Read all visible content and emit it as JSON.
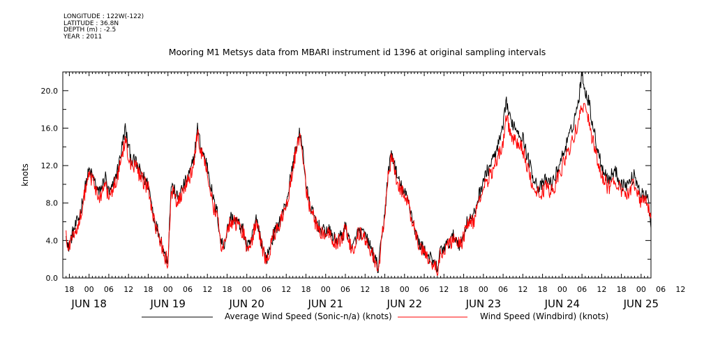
{
  "metadata": {
    "longitude": "LONGITUDE : 122W(-122)",
    "latitude": "LATITUDE : 36.8N",
    "depth": "DEPTH (m) : -2.5",
    "year": "YEAR : 2011"
  },
  "chart_data": {
    "type": "line",
    "title": "Mooring M1 Metsys data from MBARI instrument id 1396 at original sampling intervals",
    "ylabel": "knots",
    "ylim": [
      0,
      22
    ],
    "yticks": [
      0,
      4,
      8,
      12,
      16,
      20
    ],
    "ytick_labels": [
      "0.0",
      "4.0",
      "8.0",
      "12.0",
      "16.0",
      "20.0"
    ],
    "xlim_hours": [
      -8,
      171
    ],
    "hour_tick_labels": [
      "18",
      "00",
      "06",
      "12",
      "18",
      "00",
      "06",
      "12",
      "18",
      "00",
      "06",
      "12",
      "18",
      "00",
      "06",
      "12",
      "18",
      "00",
      "06",
      "12",
      "18",
      "00",
      "06",
      "12",
      "18",
      "00",
      "06",
      "12",
      "18",
      "00",
      "06",
      "12"
    ],
    "day_labels": [
      "JUN 18",
      "JUN 19",
      "JUN 20",
      "JUN 21",
      "JUN 22",
      "JUN 23",
      "JUN 24",
      "JUN 25"
    ],
    "grid": false,
    "legend_position": "bottom",
    "series": [
      {
        "name": "Average Wind Speed (Sonic-n/a) (knots)",
        "color": "#000000",
        "keypoints": [
          [
            -7,
            5.2
          ],
          [
            -6.5,
            3
          ],
          [
            -5,
            4.8
          ],
          [
            -3,
            6.5
          ],
          [
            -1,
            10
          ],
          [
            0,
            11.5
          ],
          [
            1.5,
            10.5
          ],
          [
            3,
            9
          ],
          [
            5,
            10.8
          ],
          [
            6,
            9
          ],
          [
            7,
            9.5
          ],
          [
            9,
            12
          ],
          [
            10,
            14
          ],
          [
            11,
            16
          ],
          [
            12,
            14
          ],
          [
            13,
            12.5
          ],
          [
            14,
            12.5
          ],
          [
            16,
            11
          ],
          [
            18,
            10
          ],
          [
            19,
            8
          ],
          [
            20,
            6
          ],
          [
            21,
            5
          ],
          [
            22,
            4
          ],
          [
            23,
            2.5
          ],
          [
            24,
            2
          ],
          [
            24.5,
            6
          ],
          [
            25,
            10
          ],
          [
            27,
            8.5
          ],
          [
            29,
            10
          ],
          [
            31,
            11.5
          ],
          [
            32,
            13
          ],
          [
            33,
            16
          ],
          [
            34,
            14
          ],
          [
            35,
            13
          ],
          [
            36,
            12
          ],
          [
            37,
            10
          ],
          [
            38,
            8
          ],
          [
            39,
            7
          ],
          [
            40,
            4
          ],
          [
            41,
            3.5
          ],
          [
            43,
            6.5
          ],
          [
            45,
            6
          ],
          [
            47,
            5
          ],
          [
            48,
            3.3
          ],
          [
            49,
            3.5
          ],
          [
            50,
            5
          ],
          [
            51,
            6.5
          ],
          [
            53,
            3
          ],
          [
            54,
            2
          ],
          [
            56,
            4.5
          ],
          [
            58,
            6
          ],
          [
            60,
            8
          ],
          [
            62,
            12
          ],
          [
            63,
            14
          ],
          [
            64,
            15.3
          ],
          [
            65,
            14
          ],
          [
            66,
            10
          ],
          [
            67,
            8
          ],
          [
            69,
            6
          ],
          [
            71,
            5
          ],
          [
            73,
            5
          ],
          [
            75,
            4
          ],
          [
            77,
            4.5
          ],
          [
            78,
            5.5
          ],
          [
            80,
            3
          ],
          [
            82,
            5
          ],
          [
            84,
            4.5
          ],
          [
            86,
            3
          ],
          [
            87,
            2
          ],
          [
            88,
            1
          ],
          [
            89,
            4
          ],
          [
            90,
            7
          ],
          [
            91,
            11
          ],
          [
            92,
            13.5
          ],
          [
            93,
            12
          ],
          [
            94,
            10.5
          ],
          [
            96,
            9
          ],
          [
            97,
            8.5
          ],
          [
            98,
            7
          ],
          [
            99,
            5.5
          ],
          [
            100,
            4
          ],
          [
            102,
            3
          ],
          [
            104,
            2
          ],
          [
            106,
            1
          ],
          [
            107,
            3
          ],
          [
            109,
            3.5
          ],
          [
            111,
            4.5
          ],
          [
            113,
            3.5
          ],
          [
            115,
            6
          ],
          [
            117,
            6.5
          ],
          [
            118,
            8
          ],
          [
            120,
            10.5
          ],
          [
            122,
            12
          ],
          [
            124,
            13.5
          ],
          [
            126,
            16
          ],
          [
            127,
            19
          ],
          [
            128,
            17
          ],
          [
            130,
            16
          ],
          [
            132,
            15
          ],
          [
            133,
            13.5
          ],
          [
            135,
            11
          ],
          [
            137,
            9.5
          ],
          [
            139,
            10.5
          ],
          [
            141,
            10
          ],
          [
            143,
            12
          ],
          [
            145,
            14
          ],
          [
            147,
            16
          ],
          [
            149,
            19
          ],
          [
            150,
            22
          ],
          [
            151,
            20
          ],
          [
            152,
            19
          ],
          [
            154,
            15
          ],
          [
            156,
            12
          ],
          [
            158,
            10.5
          ],
          [
            160,
            11.5
          ],
          [
            162,
            10
          ],
          [
            164,
            10
          ],
          [
            166,
            11
          ],
          [
            168,
            9
          ],
          [
            170,
            8.5
          ],
          [
            171,
            6
          ]
        ]
      },
      {
        "name": "Wind Speed (Windbird) (knots)",
        "color": "#ff0000",
        "keypoints": [
          [
            -7,
            5
          ],
          [
            -6.5,
            2.8
          ],
          [
            -5,
            4.5
          ],
          [
            -3,
            6
          ],
          [
            -1,
            9.5
          ],
          [
            0,
            11
          ],
          [
            1.5,
            10
          ],
          [
            3,
            8.5
          ],
          [
            5,
            10
          ],
          [
            6,
            8.5
          ],
          [
            7,
            9
          ],
          [
            9,
            11.5
          ],
          [
            10,
            13
          ],
          [
            11,
            15
          ],
          [
            12,
            13
          ],
          [
            13,
            12
          ],
          [
            14,
            12
          ],
          [
            16,
            10.5
          ],
          [
            18,
            9.5
          ],
          [
            19,
            7.5
          ],
          [
            20,
            5.5
          ],
          [
            21,
            4.5
          ],
          [
            22,
            3.5
          ],
          [
            23,
            2.3
          ],
          [
            24,
            1.8
          ],
          [
            24.5,
            5.5
          ],
          [
            25,
            9.5
          ],
          [
            27,
            8
          ],
          [
            29,
            9.5
          ],
          [
            31,
            11
          ],
          [
            32,
            12.5
          ],
          [
            33,
            15.5
          ],
          [
            34,
            13.5
          ],
          [
            35,
            12.5
          ],
          [
            36,
            11.5
          ],
          [
            37,
            9.5
          ],
          [
            38,
            7.5
          ],
          [
            39,
            6.5
          ],
          [
            40,
            3.8
          ],
          [
            41,
            3.3
          ],
          [
            43,
            6.2
          ],
          [
            45,
            5.8
          ],
          [
            47,
            4.8
          ],
          [
            48,
            3.1
          ],
          [
            49,
            3.3
          ],
          [
            50,
            4.8
          ],
          [
            51,
            6.2
          ],
          [
            53,
            2.8
          ],
          [
            54,
            1.9
          ],
          [
            56,
            4.3
          ],
          [
            58,
            5.8
          ],
          [
            60,
            7.6
          ],
          [
            62,
            11.6
          ],
          [
            63,
            13.6
          ],
          [
            64,
            15
          ],
          [
            65,
            13.6
          ],
          [
            66,
            9.6
          ],
          [
            67,
            7.6
          ],
          [
            69,
            5.8
          ],
          [
            71,
            4.8
          ],
          [
            73,
            4.8
          ],
          [
            75,
            3.8
          ],
          [
            77,
            4.3
          ],
          [
            78,
            5.3
          ],
          [
            80,
            2.8
          ],
          [
            82,
            4.8
          ],
          [
            84,
            4.3
          ],
          [
            86,
            2.8
          ],
          [
            87,
            1.8
          ],
          [
            88,
            0.8
          ],
          [
            89,
            3.8
          ],
          [
            90,
            6.6
          ],
          [
            91,
            10.6
          ],
          [
            92,
            13
          ],
          [
            93,
            11.6
          ],
          [
            94,
            10
          ],
          [
            96,
            8.6
          ],
          [
            97,
            8
          ],
          [
            98,
            6.6
          ],
          [
            99,
            5.2
          ],
          [
            100,
            3.8
          ],
          [
            102,
            2.8
          ],
          [
            104,
            1.8
          ],
          [
            106,
            0.8
          ],
          [
            107,
            2.8
          ],
          [
            109,
            3.3
          ],
          [
            111,
            4.3
          ],
          [
            113,
            3.3
          ],
          [
            115,
            5.6
          ],
          [
            117,
            6
          ],
          [
            118,
            7.4
          ],
          [
            120,
            9.4
          ],
          [
            122,
            11
          ],
          [
            124,
            12.3
          ],
          [
            126,
            14.4
          ],
          [
            127,
            17.2
          ],
          [
            128,
            15.5
          ],
          [
            130,
            14.6
          ],
          [
            132,
            13.8
          ],
          [
            133,
            12.4
          ],
          [
            135,
            10
          ],
          [
            137,
            8.8
          ],
          [
            139,
            9.6
          ],
          [
            141,
            9.2
          ],
          [
            143,
            11
          ],
          [
            145,
            12.8
          ],
          [
            147,
            14.4
          ],
          [
            149,
            16.8
          ],
          [
            150,
            18.8
          ],
          [
            151,
            17.6
          ],
          [
            152,
            16.8
          ],
          [
            154,
            13.6
          ],
          [
            156,
            11
          ],
          [
            158,
            9.6
          ],
          [
            160,
            10.4
          ],
          [
            162,
            9.2
          ],
          [
            164,
            9.2
          ],
          [
            166,
            10
          ],
          [
            168,
            8.2
          ],
          [
            170,
            7.8
          ],
          [
            171,
            5.8
          ]
        ]
      }
    ]
  }
}
